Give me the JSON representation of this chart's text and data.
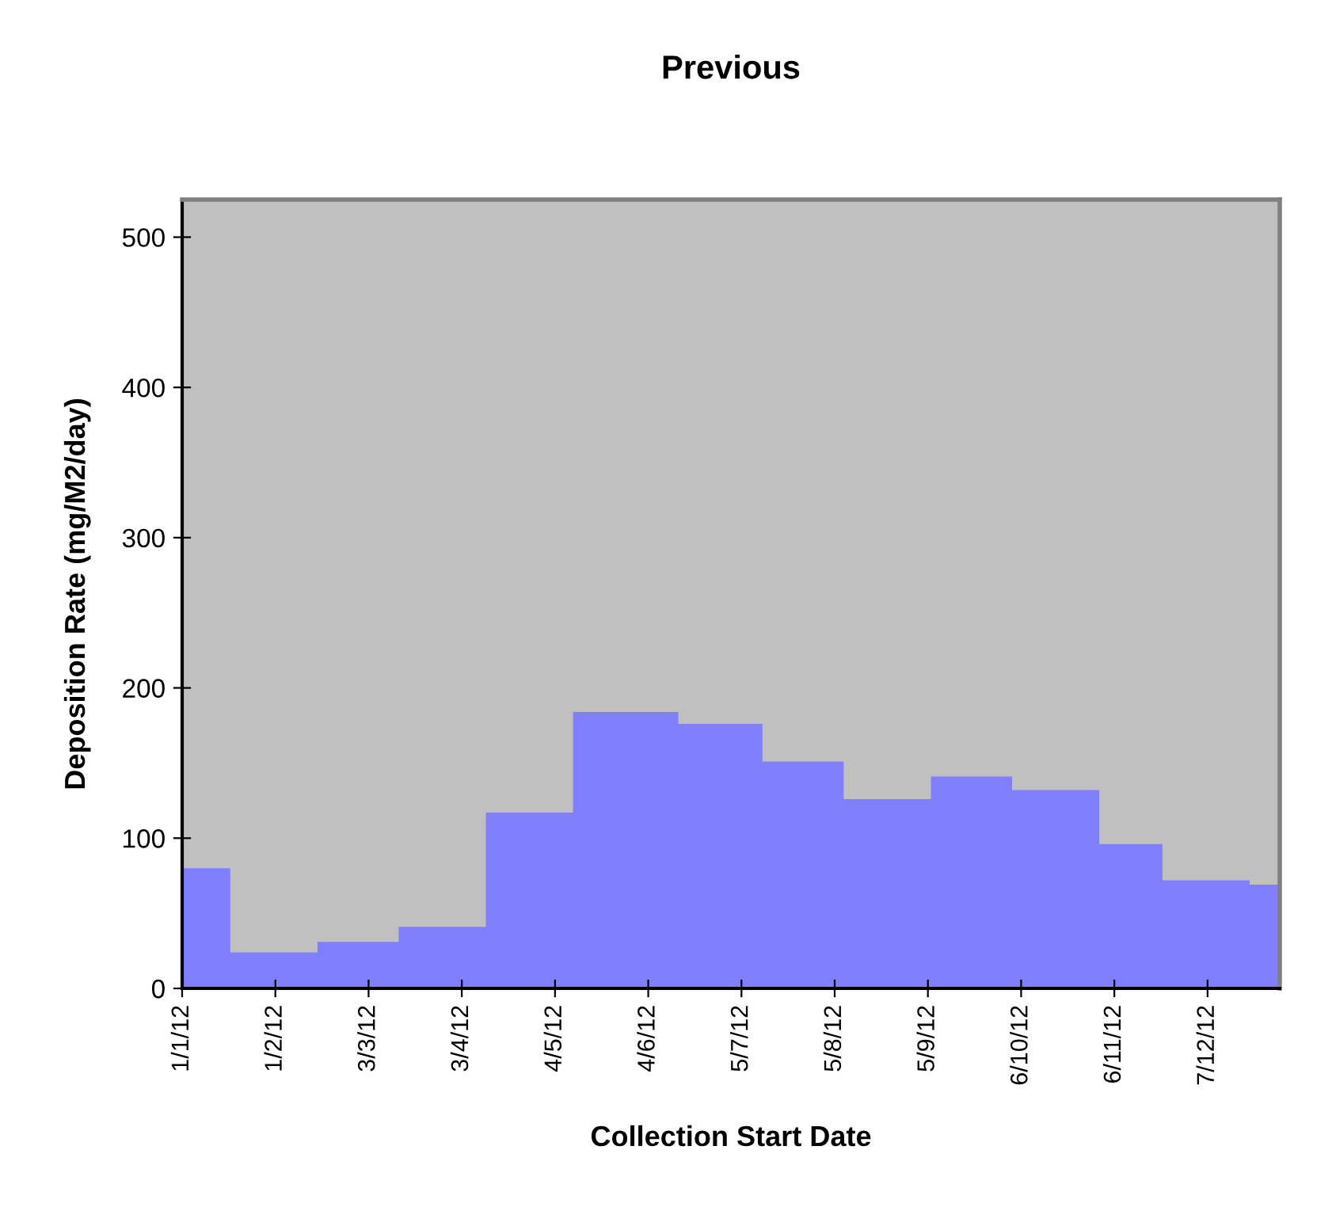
{
  "chart_data": {
    "type": "area",
    "title": "Previous",
    "xlabel": "Collection Start Date",
    "ylabel": "Deposition Rate (mg/M2/day)",
    "series": [
      {
        "color": "#8080ff",
        "x": [
          "2012-01-01",
          "2012-01-17",
          "2012-01-17",
          "2012-02-15",
          "2012-02-15",
          "2012-03-13",
          "2012-03-13",
          "2012-04-11",
          "2012-04-11",
          "2012-05-10",
          "2012-05-10",
          "2012-06-14",
          "2012-06-14",
          "2012-07-12",
          "2012-07-12",
          "2012-08-08",
          "2012-08-08",
          "2012-09-06",
          "2012-09-06",
          "2012-10-03",
          "2012-10-03",
          "2012-11-01",
          "2012-11-01",
          "2012-11-22",
          "2012-11-22",
          "2012-12-21",
          "2012-12-21",
          "2012-12-31"
        ],
        "values": [
          80,
          80,
          24,
          24,
          31,
          31,
          41,
          41,
          117,
          117,
          184,
          184,
          176,
          176,
          151,
          151,
          126,
          126,
          141,
          141,
          132,
          132,
          96,
          96,
          72,
          72,
          69,
          69
        ]
      }
    ],
    "xlim": [
      "2012-01-01",
      "2012-12-31"
    ],
    "xticks": [
      {
        "value": "2012-01-01",
        "label": "1/1/12"
      },
      {
        "value": "2012-02-01",
        "label": "1/2/12"
      },
      {
        "value": "2012-03-03",
        "label": "3/3/12"
      },
      {
        "value": "2012-04-03",
        "label": "3/4/12"
      },
      {
        "value": "2012-05-04",
        "label": "4/5/12"
      },
      {
        "value": "2012-06-04",
        "label": "4/6/12"
      },
      {
        "value": "2012-07-05",
        "label": "5/7/12"
      },
      {
        "value": "2012-08-05",
        "label": "5/8/12"
      },
      {
        "value": "2012-09-05",
        "label": "5/9/12"
      },
      {
        "value": "2012-10-06",
        "label": "6/10/12"
      },
      {
        "value": "2012-11-06",
        "label": "6/11/12"
      },
      {
        "value": "2012-12-07",
        "label": "7/12/12"
      }
    ],
    "ylim": [
      0,
      525
    ],
    "yticks": [
      0,
      100,
      200,
      300,
      400,
      500
    ],
    "grid": false,
    "legend": false
  }
}
